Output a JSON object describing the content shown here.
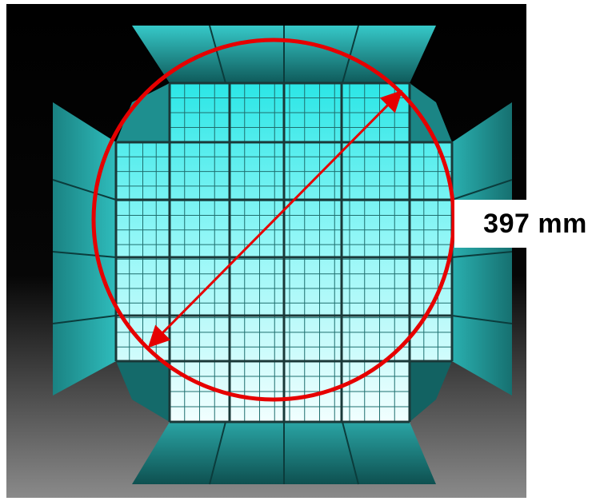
{
  "dimension_label": "397 mm",
  "colors": {
    "background_top": "#000000",
    "background_bottom": "#8a8a8a",
    "crystal_bright": "#f2ffff",
    "crystal_mid": "#7ff4f4",
    "crystal_top": "#2be6e6",
    "side_face_light": "#2ab5b5",
    "side_face_dark": "#0f5a5a",
    "gap_line": "#1a3838",
    "marker_red": "#e60000"
  }
}
